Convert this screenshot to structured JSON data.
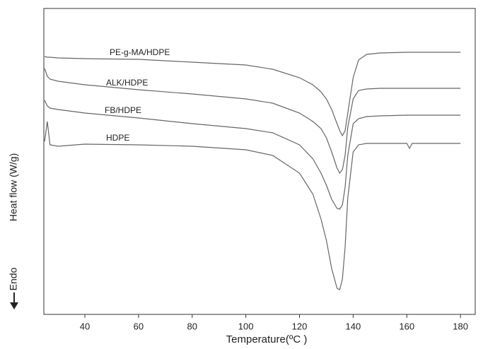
{
  "chart_data": {
    "type": "line",
    "x_label": "Temperature(ºC )",
    "y_label": "Heat flow (W/g)",
    "y_direction_label": "Endo",
    "x": [
      25,
      26,
      27,
      30,
      40,
      60,
      80,
      100,
      110,
      120,
      125,
      128,
      130,
      132,
      134,
      135,
      136,
      137,
      138,
      140,
      142,
      145,
      150,
      160,
      161,
      162,
      170,
      180
    ],
    "series": [
      {
        "name": "PE-g-MA/HDPE",
        "color": "#666666",
        "values": [
          365,
          364,
          364,
          363,
          362,
          361,
          357,
          353,
          347,
          335,
          325,
          315,
          305,
          290,
          270,
          260,
          253,
          260,
          285,
          335,
          360,
          368,
          370,
          371,
          371,
          371,
          371,
          371
        ]
      },
      {
        "name": "ALK/HDPE",
        "color": "#666666",
        "values": [
          348,
          337,
          333,
          330,
          325,
          318,
          312,
          305,
          299,
          285,
          273,
          263,
          250,
          230,
          207,
          200,
          205,
          225,
          265,
          305,
          317,
          319,
          320,
          320,
          320,
          320,
          320,
          320
        ]
      },
      {
        "name": "FB/HDPE",
        "color": "#666666",
        "values": [
          303,
          295,
          292,
          290,
          285,
          278,
          270,
          263,
          257,
          240,
          220,
          200,
          183,
          163,
          150,
          149,
          155,
          180,
          225,
          270,
          277,
          280,
          281,
          282,
          282,
          282,
          282,
          282
        ]
      },
      {
        "name": "HDPE",
        "color": "#666666",
        "values": [
          245,
          273,
          240,
          238,
          241,
          240,
          238,
          233,
          225,
          200,
          170,
          135,
          105,
          65,
          37,
          35,
          50,
          95,
          165,
          230,
          240,
          242,
          242,
          242,
          235,
          242,
          242,
          242
        ]
      }
    ],
    "xlim": [
      24.7,
      185.5
    ],
    "xticks": [
      40,
      60,
      80,
      100,
      120,
      140,
      160,
      180
    ],
    "ylim": [
      0,
      433
    ],
    "grid": false
  }
}
